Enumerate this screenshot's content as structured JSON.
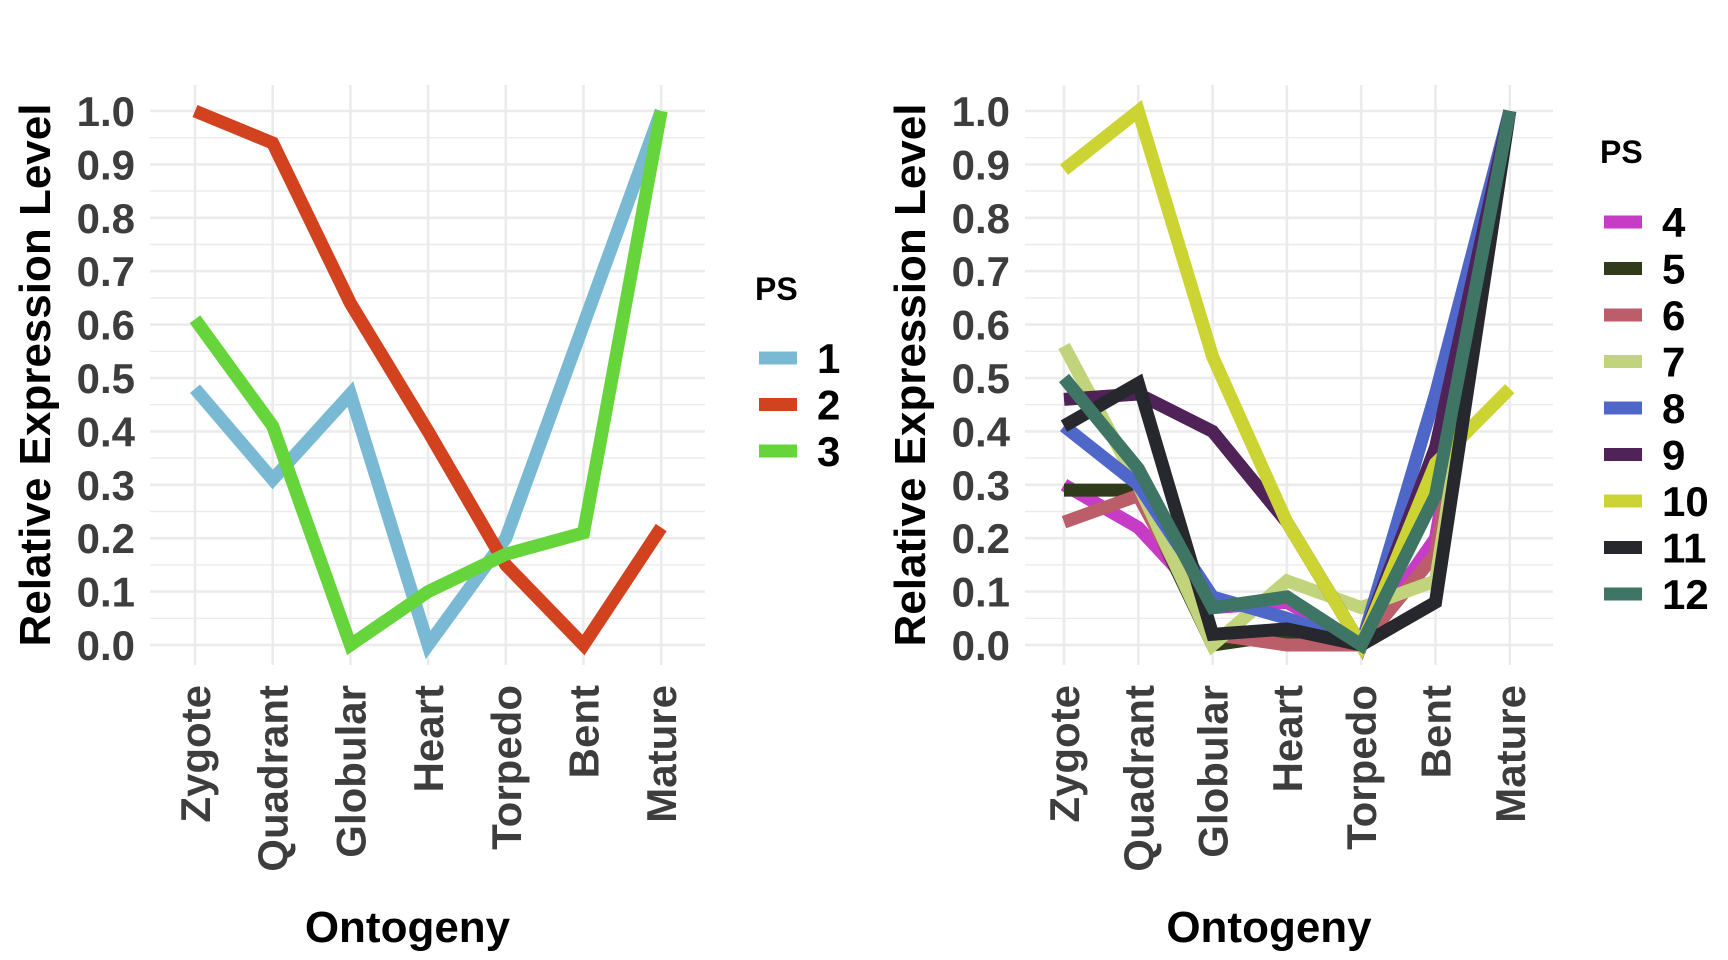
{
  "chart_data": [
    {
      "type": "line",
      "xlabel": "Ontogeny",
      "ylabel": "Relative Expression Level",
      "categories": [
        "Zygote",
        "Quadrant",
        "Globular",
        "Heart",
        "Torpedo",
        "Bent",
        "Mature"
      ],
      "ylim": [
        0,
        1
      ],
      "yticks": [
        "0.0",
        "0.1",
        "0.2",
        "0.3",
        "0.4",
        "0.5",
        "0.6",
        "0.7",
        "0.8",
        "0.9",
        "1.0"
      ],
      "grid": true,
      "legend_title": "PS",
      "legend_position": "right",
      "series": [
        {
          "name": "1",
          "color": "#7ab9d3",
          "values": [
            0.48,
            0.31,
            0.47,
            0.0,
            0.2,
            0.6,
            1.0
          ]
        },
        {
          "name": "2",
          "color": "#d2421e",
          "values": [
            1.0,
            0.94,
            0.64,
            0.4,
            0.15,
            0.0,
            0.22
          ]
        },
        {
          "name": "3",
          "color": "#66d43b",
          "values": [
            0.61,
            0.41,
            0.0,
            0.1,
            0.17,
            0.21,
            1.0
          ]
        }
      ]
    },
    {
      "type": "line",
      "xlabel": "Ontogeny",
      "ylabel": "Relative Expression Level",
      "categories": [
        "Zygote",
        "Quadrant",
        "Globular",
        "Heart",
        "Torpedo",
        "Bent",
        "Mature"
      ],
      "ylim": [
        0,
        1
      ],
      "yticks": [
        "0.0",
        "0.1",
        "0.2",
        "0.3",
        "0.4",
        "0.5",
        "0.6",
        "0.7",
        "0.8",
        "0.9",
        "1.0"
      ],
      "grid": true,
      "legend_title": "PS",
      "legend_position": "right",
      "series": [
        {
          "name": "4",
          "color": "#c73cc6",
          "values": [
            0.3,
            0.22,
            0.07,
            0.08,
            0.0,
            0.2,
            1.0
          ]
        },
        {
          "name": "5",
          "color": "#2f3b1b",
          "values": [
            0.29,
            0.29,
            0.0,
            0.02,
            0.0,
            0.35,
            1.0
          ]
        },
        {
          "name": "6",
          "color": "#bb5e6a",
          "values": [
            0.23,
            0.28,
            0.02,
            0.0,
            0.0,
            0.17,
            1.0
          ]
        },
        {
          "name": "7",
          "color": "#c2d47b",
          "values": [
            0.56,
            0.3,
            0.0,
            0.12,
            0.07,
            0.12,
            1.0
          ]
        },
        {
          "name": "8",
          "color": "#4e67c9",
          "values": [
            0.41,
            0.3,
            0.09,
            0.05,
            0.0,
            0.47,
            1.0
          ]
        },
        {
          "name": "9",
          "color": "#4f2258",
          "values": [
            0.46,
            0.47,
            0.4,
            0.23,
            0.0,
            0.37,
            1.0
          ]
        },
        {
          "name": "10",
          "color": "#ccd434",
          "values": [
            0.89,
            1.0,
            0.54,
            0.23,
            0.0,
            0.34,
            0.48
          ]
        },
        {
          "name": "11",
          "color": "#27272e",
          "values": [
            0.41,
            0.49,
            0.02,
            0.03,
            0.0,
            0.08,
            1.0
          ]
        },
        {
          "name": "12",
          "color": "#3f7565",
          "values": [
            0.5,
            0.33,
            0.07,
            0.09,
            0.0,
            0.28,
            1.0
          ]
        }
      ]
    }
  ]
}
